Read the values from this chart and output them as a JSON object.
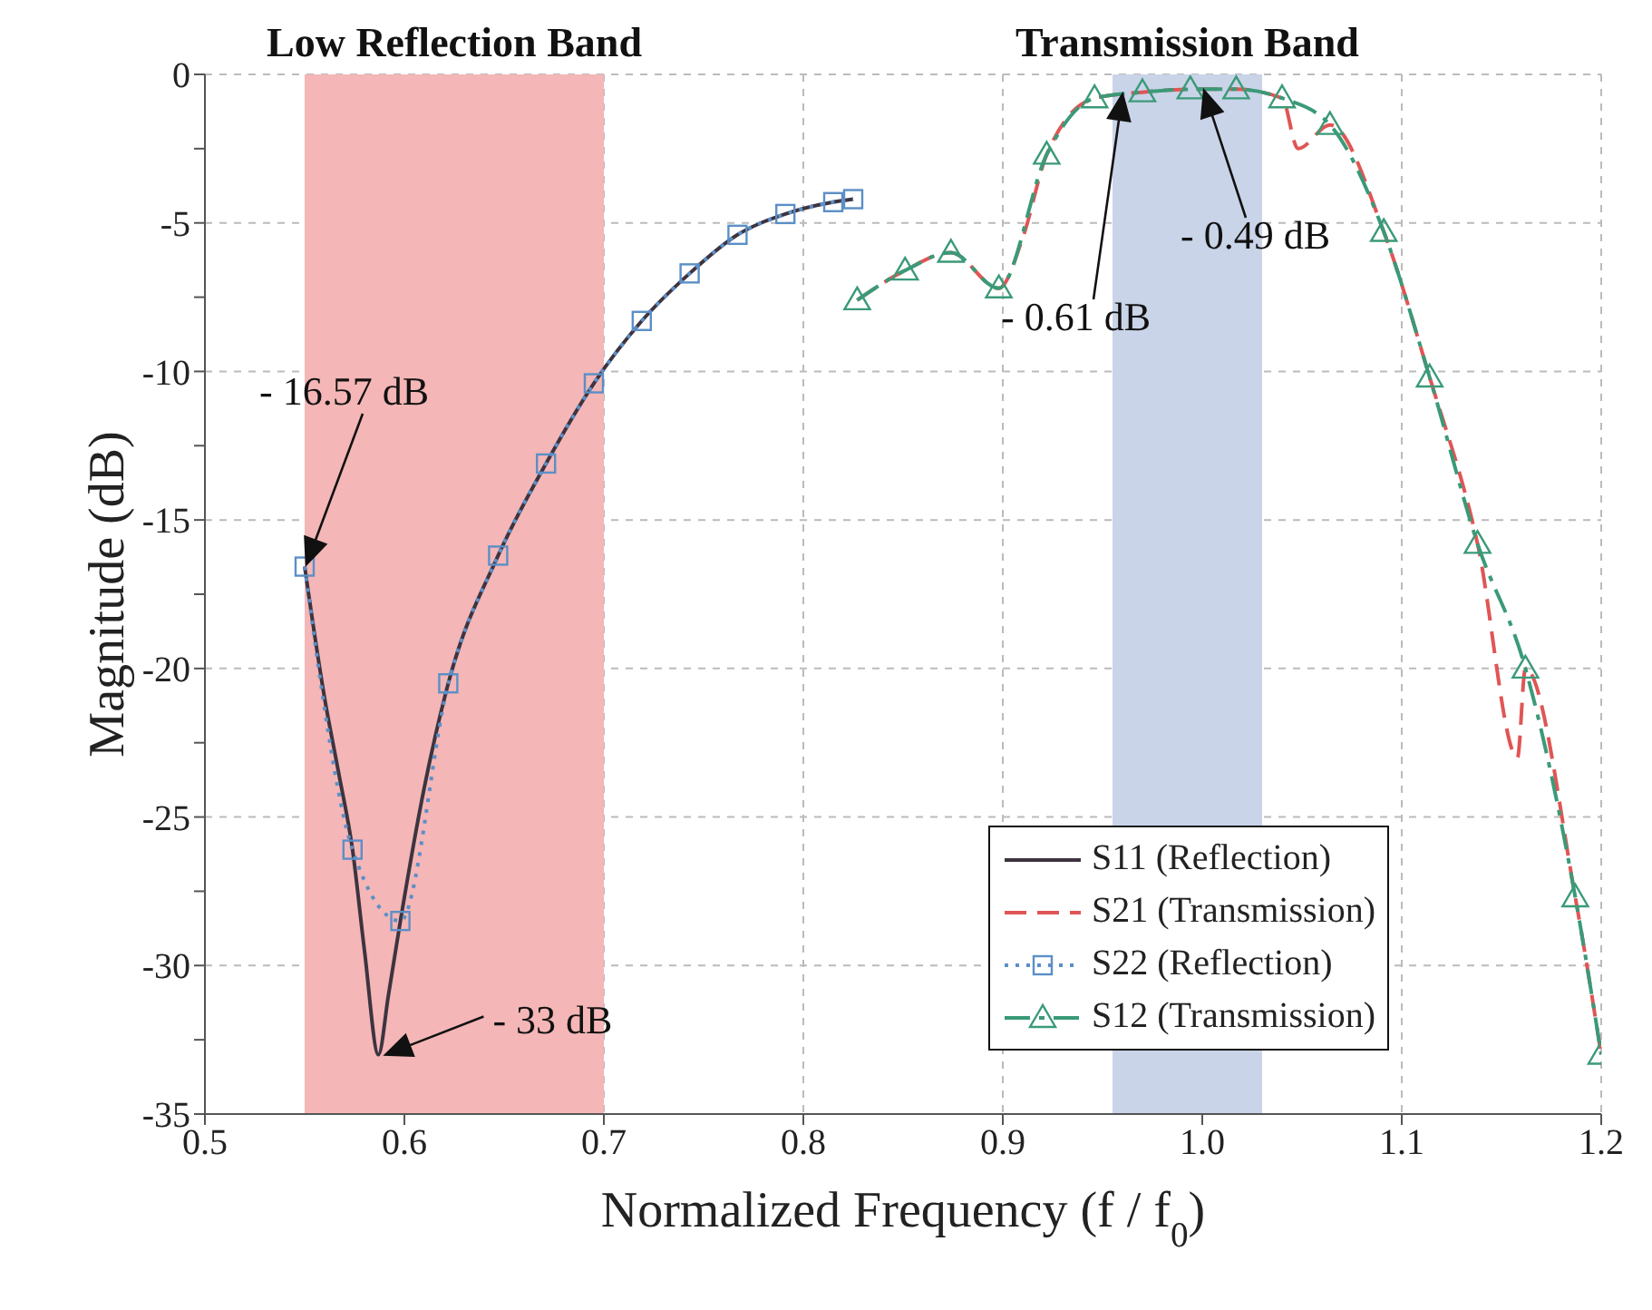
{
  "chart_data": {
    "type": "line",
    "xlabel": "Normalized Frequency (f / f$_{0}$)",
    "ylabel": "Magnitude (dB)",
    "xlim": [
      0.5,
      1.2
    ],
    "xticks": [
      0.5,
      0.6,
      0.7,
      0.8,
      0.9,
      {
        "value": 1,
        "label": "1.0"
      },
      1.1,
      1.2
    ],
    "ylim": [
      -35,
      0
    ],
    "yticks": [
      -35,
      {
        "value": -32.5,
        "label": null
      },
      -30,
      {
        "value": -27.5,
        "label": null
      },
      -25,
      {
        "value": -22.5,
        "label": null
      },
      -20,
      {
        "value": -17.5,
        "label": null
      },
      -15,
      {
        "value": -12.5,
        "label": null
      },
      -10,
      {
        "value": -7.5,
        "label": null
      },
      -5,
      {
        "value": -2.5,
        "label": null
      },
      0
    ],
    "grid": true,
    "legend": "bottom right",
    "series": [
      {
        "name": "S11 (Reflection)",
        "color": "#3d3440",
        "marker": "none",
        "line_style": "solid",
        "x": [
          0.55,
          0.56,
          0.567,
          0.574,
          0.58,
          0.587,
          0.592,
          0.598,
          0.61,
          0.622,
          0.647,
          0.671,
          0.695,
          0.719,
          0.743,
          0.767,
          0.791,
          0.815,
          0.825
        ],
        "values": [
          -16.57,
          -21,
          -23.5,
          -26.1,
          -29.5,
          -33,
          -31,
          -28.5,
          -24,
          -20.5,
          -16.2,
          -13.1,
          -10.4,
          -8.3,
          -6.7,
          -5.4,
          -4.7,
          -4.3,
          -4.2
        ]
      },
      {
        "name": "S21 (Transmission)",
        "color": "#e05555",
        "marker": "none",
        "line_style": "dashed",
        "x": [
          0.827,
          0.851,
          0.874,
          0.898,
          0.91,
          0.922,
          0.946,
          0.97,
          0.994,
          1.017,
          1.04,
          1.048,
          1.064,
          1.091,
          1.114,
          1.138,
          1.158,
          1.162,
          1.187,
          1.2
        ],
        "values": [
          -7.6,
          -6.6,
          -6,
          -7.2,
          -5.5,
          -2.7,
          -0.8,
          -0.6,
          -0.5,
          -0.5,
          -0.8,
          -2.5,
          -1.7,
          -5.3,
          -10.2,
          -15.8,
          -23,
          -20,
          -27.7,
          -33
        ]
      },
      {
        "name": "S22 (Reflection)",
        "color": "#5b8fc7",
        "marker": "square",
        "line_style": "dotted",
        "x": [
          0.55,
          0.574,
          0.598,
          0.622,
          0.647,
          0.671,
          0.695,
          0.719,
          0.743,
          0.767,
          0.791,
          0.815,
          0.825
        ],
        "values": [
          -16.57,
          -26.1,
          -28.5,
          -20.5,
          -16.2,
          -13.1,
          -10.4,
          -8.3,
          -6.7,
          -5.4,
          -4.7,
          -4.3,
          -4.2
        ]
      },
      {
        "name": "S12 (Transmission)",
        "color": "#3a9a78",
        "marker": "triangle",
        "line_style": "dashdot",
        "x": [
          0.827,
          0.851,
          0.874,
          0.898,
          0.922,
          0.946,
          0.97,
          0.994,
          1.017,
          1.04,
          1.064,
          1.091,
          1.114,
          1.138,
          1.162,
          1.187,
          1.2
        ],
        "values": [
          -7.6,
          -6.6,
          -6,
          -7.2,
          -2.7,
          -0.8,
          -0.6,
          -0.5,
          -0.5,
          -0.8,
          -1.7,
          -5.3,
          -10.2,
          -15.8,
          -20,
          -27.7,
          -33
        ]
      }
    ],
    "bands": [
      {
        "axis": "x",
        "from": 0.55,
        "to": 0.7,
        "label": "Low Reflection Band",
        "color": "#f4b6b6"
      },
      {
        "axis": "x",
        "from": 0.955,
        "to": 1.03,
        "label": "Transmission Band",
        "color": "#c9d4e8"
      }
    ],
    "annotations": [
      "- 16.57 dB",
      {
        "text": "- 33 dB",
        "x": 0.587,
        "y": -33
      },
      "- 0.61 dB",
      "- 0.49 dB"
    ]
  }
}
